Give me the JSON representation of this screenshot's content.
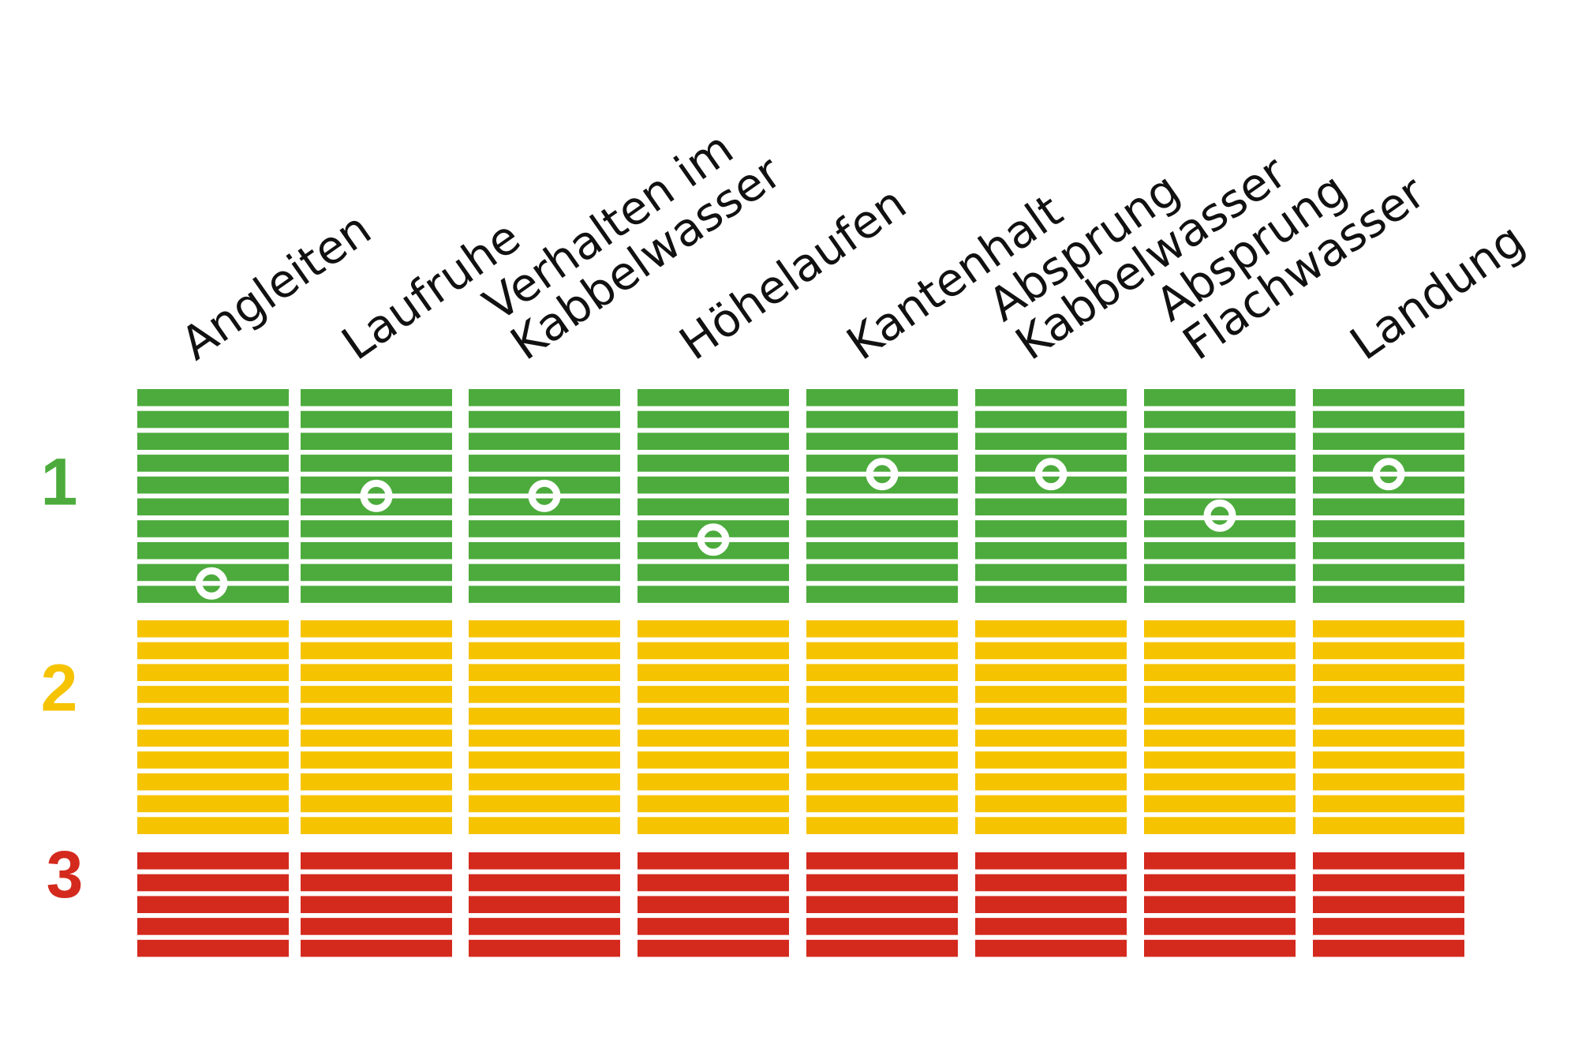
{
  "chart_data": {
    "type": "heatmap",
    "title": "",
    "xlabel": "",
    "ylabel": "",
    "categories": [
      [
        "Angleiten"
      ],
      [
        "Laufruhe"
      ],
      [
        "Verhalten im",
        "Kabbelwasser"
      ],
      [
        "Höhelaufen"
      ],
      [
        "Kantenhalt"
      ],
      [
        "Absprung",
        "Kabbelwasser"
      ],
      [
        "Absprung",
        "Flachwasser"
      ],
      [
        "Landung"
      ]
    ],
    "levels": [
      {
        "label": "1",
        "color": "#4cab3c",
        "stripes": 10
      },
      {
        "label": "2",
        "color": "#f5c300",
        "stripes": 10
      },
      {
        "label": "3",
        "color": "#d42a1e",
        "stripes": 5
      }
    ],
    "marker_scale": "stripe index within level 1 (0 = top stripe, 9 = bottom stripe)",
    "values": [
      8.5,
      4.5,
      4.5,
      6.5,
      3.5,
      3.5,
      5.4,
      3.5
    ],
    "marker_color": "#ffffff",
    "grid": false,
    "legend": "none"
  }
}
